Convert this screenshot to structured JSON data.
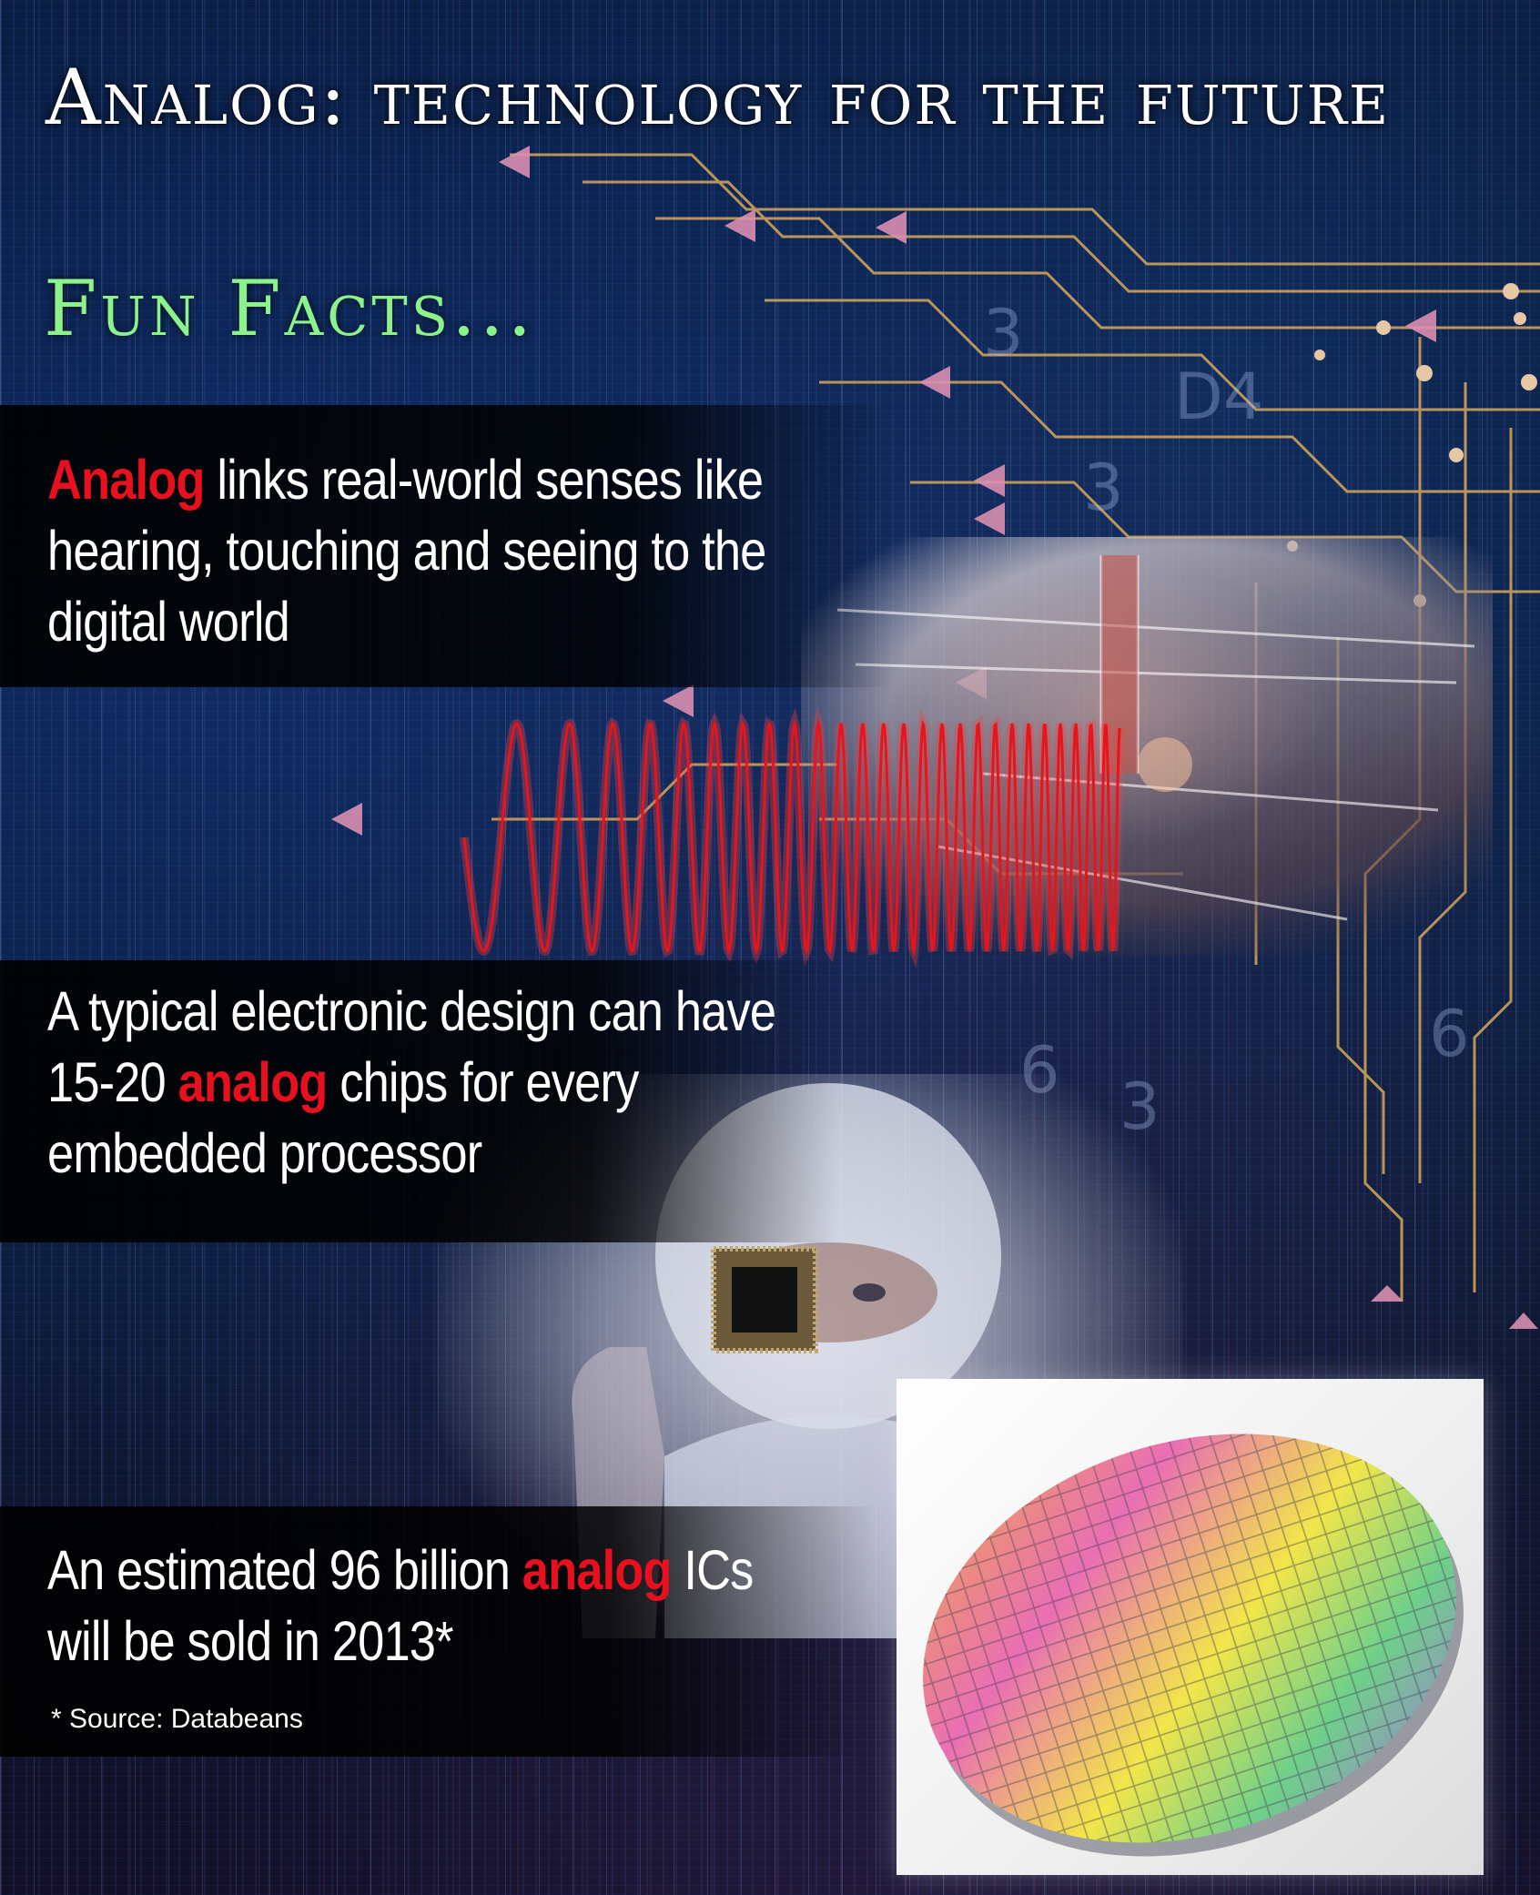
{
  "title": "Analog: technology for the future",
  "subtitle": "Fun Facts...",
  "facts": [
    {
      "highlight": "Analog",
      "text": " links real-world senses like hearing, touching and seeing to the digital world"
    },
    {
      "before": "A typical electronic design can have 15-20 ",
      "highlight": "analog",
      "after": " chips for every embedded processor"
    },
    {
      "before": "An estimated 96 billion ",
      "highlight": "analog",
      "after": " ICs will be sold in 2013*"
    }
  ],
  "source": "* Source: Databeans",
  "colors": {
    "highlight": "#e8101e",
    "subtitle": "#8cf28c",
    "circuit_gold": "#d9a75a",
    "arrow_pink": "#d98fb0",
    "wave_red": "#e3161e"
  },
  "icons": [
    "circuit-trace-arrows",
    "sine-wave",
    "silicon-wafer",
    "microchip"
  ]
}
